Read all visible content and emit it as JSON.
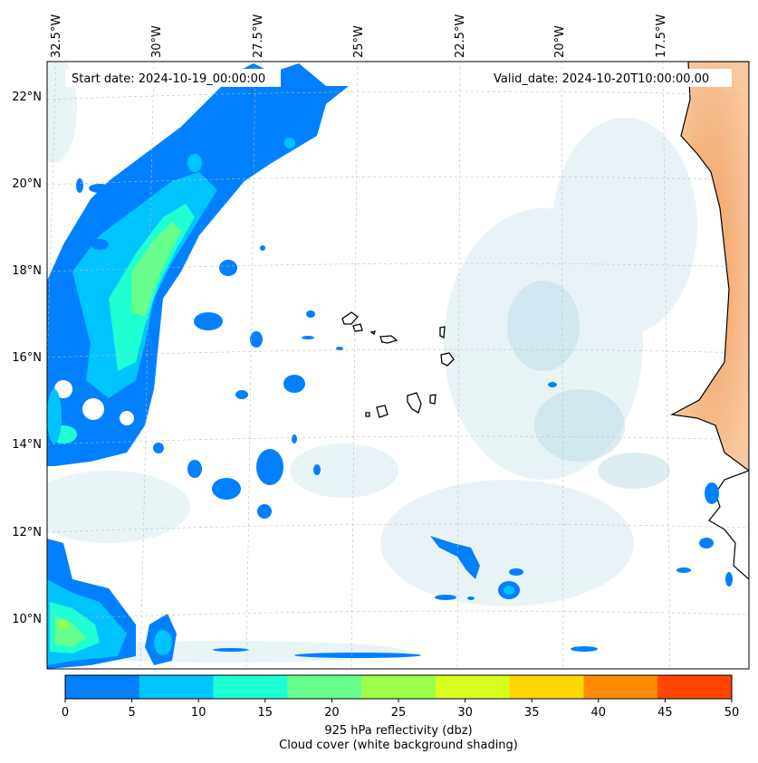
{
  "map": {
    "start_date": "Start date: 2024-10-19_00:00:00",
    "valid_date": "Valid_date: 2024-10-20T10:00:00.00",
    "lon_labels": [
      "32.5°W",
      "30°W",
      "27.5°W",
      "25°W",
      "22.5°W",
      "20°W",
      "17.5°W"
    ],
    "lat_labels": [
      "22°N",
      "20°N",
      "18°N",
      "16°N",
      "14°N",
      "12°N",
      "10°N"
    ]
  },
  "colorbar": {
    "ticks": [
      "0",
      "5",
      "10",
      "15",
      "20",
      "25",
      "30",
      "35",
      "40",
      "45",
      "50"
    ],
    "colors": [
      "#0080ff",
      "#00c4ff",
      "#1effd2",
      "#66ff8c",
      "#9cff4a",
      "#d8ff1e",
      "#ffd700",
      "#ff8c00",
      "#ff4500"
    ],
    "label_line1": "925 hPa reflectivity (dbz)",
    "label_line2": "Cloud cover (white background shading)"
  }
}
